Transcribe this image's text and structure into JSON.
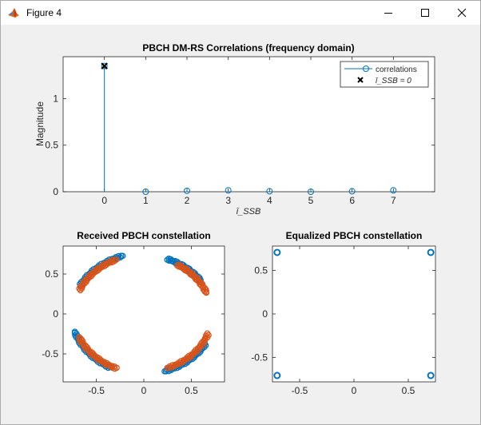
{
  "window": {
    "title": "Figure 4",
    "icons": {
      "app": "matlab-figure-icon",
      "minimize": "minimize-icon",
      "maximize": "maximize-icon",
      "close": "close-icon"
    }
  },
  "colors": {
    "blue": "#0072bd",
    "orange": "#d95319",
    "axis": "#262626",
    "figure_bg": "#f0f0f0",
    "axes_bg": "#ffffff"
  },
  "chart_data": [
    {
      "type": "stem",
      "title": "PBCH DM-RS Correlations (frequency domain)",
      "xlabel": "ī_SSB",
      "ylabel": "Magnitude",
      "xlim": [
        -1,
        8
      ],
      "ylim": [
        0,
        1.45
      ],
      "xticks": [
        "0",
        "1",
        "2",
        "3",
        "4",
        "5",
        "6",
        "7"
      ],
      "yticks": [
        "0",
        "0.5",
        "1"
      ],
      "x": [
        0,
        1,
        2,
        3,
        4,
        5,
        6,
        7
      ],
      "values": [
        1.35,
        0.0,
        0.01,
        0.015,
        0.005,
        0.0,
        0.005,
        0.015
      ],
      "detected": {
        "x": 0,
        "y": 1.35
      },
      "legend": {
        "placement": "top-right",
        "entries": [
          {
            "label": "correlations",
            "marker": "circle-line",
            "color": "#0072bd"
          },
          {
            "label": "ī_SSB = 0",
            "marker": "x",
            "color": "#000000"
          }
        ]
      }
    },
    {
      "type": "scatter",
      "title": "Received PBCH constellation",
      "xlim": [
        -0.85,
        0.85
      ],
      "ylim": [
        -0.85,
        0.85
      ],
      "xticks": [
        "-0.5",
        "0",
        "0.5"
      ],
      "yticks": [
        "-0.5",
        "0",
        "0.5"
      ],
      "series": [
        {
          "color": "#0072bd",
          "clusters": [
            {
              "angle_start_deg": 35,
              "angle_end_deg": 70,
              "radius": 0.73
            },
            {
              "angle_start_deg": 107,
              "angle_end_deg": 152,
              "radius": 0.76
            },
            {
              "angle_start_deg": 197,
              "angle_end_deg": 242,
              "radius": 0.76
            },
            {
              "angle_start_deg": 287,
              "angle_end_deg": 330,
              "radius": 0.75
            }
          ]
        },
        {
          "color": "#d95319",
          "clusters": [
            {
              "angle_start_deg": 22,
              "angle_end_deg": 60,
              "radius": 0.71
            },
            {
              "angle_start_deg": 113,
              "angle_end_deg": 156,
              "radius": 0.74
            },
            {
              "angle_start_deg": 203,
              "angle_end_deg": 247,
              "radius": 0.74
            },
            {
              "angle_start_deg": 290,
              "angle_end_deg": 340,
              "radius": 0.72
            }
          ]
        }
      ]
    },
    {
      "type": "scatter",
      "title": "Equalized PBCH constellation",
      "xlim": [
        -0.75,
        0.75
      ],
      "ylim": [
        -0.78,
        0.78
      ],
      "xticks": [
        "-0.5",
        "0",
        "0.5"
      ],
      "yticks": [
        "-0.5",
        "0",
        "0.5"
      ],
      "series": [
        {
          "color": "#0072bd",
          "points": [
            [
              -0.707,
              0.707
            ],
            [
              0.707,
              0.707
            ],
            [
              -0.707,
              -0.707
            ],
            [
              0.707,
              -0.707
            ]
          ]
        }
      ]
    }
  ]
}
